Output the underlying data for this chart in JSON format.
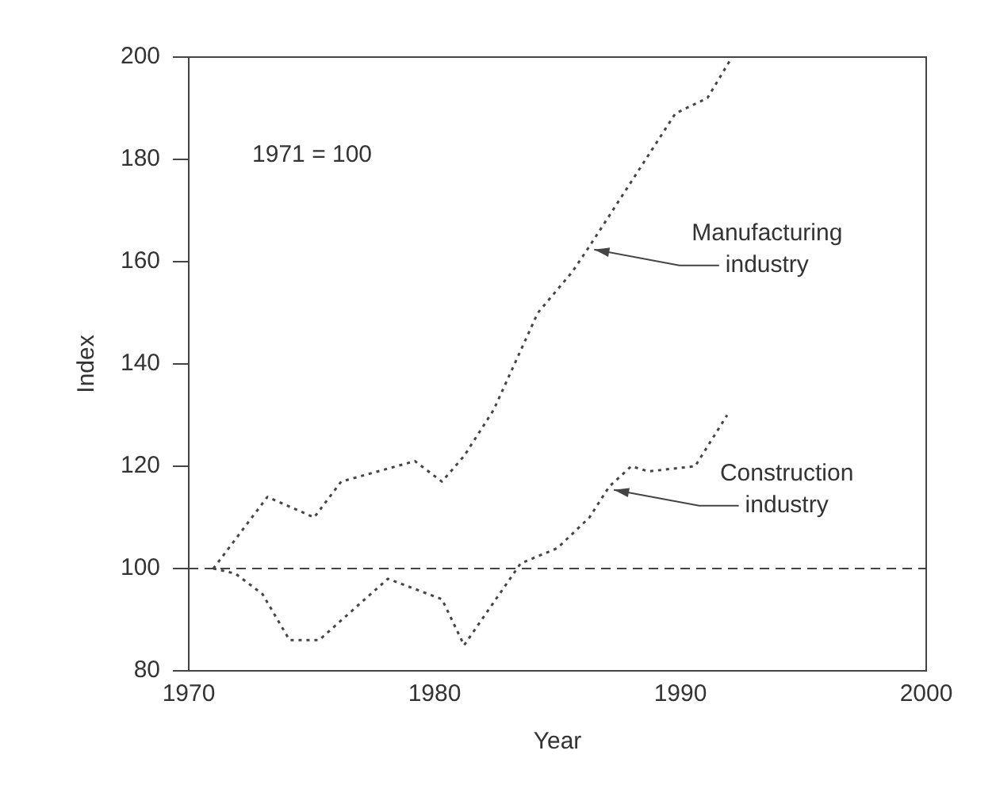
{
  "chart_data": {
    "type": "line",
    "xlabel": "Year",
    "ylabel": "Index",
    "xlim": [
      1970,
      2000
    ],
    "xticks": [
      1970,
      1980,
      1990,
      2000
    ],
    "ylim": [
      80,
      200
    ],
    "yticks": [
      80,
      100,
      120,
      140,
      160,
      180,
      200
    ],
    "grid": false,
    "legend": false,
    "marker": "none",
    "line_style": "dotted",
    "series": [
      {
        "color": "#444444",
        "x": [
          1971,
          1973.2,
          1975.1,
          1976.2,
          1979.2,
          1980.3,
          1981.2,
          1982.4,
          1984.2,
          1985.6,
          1986.3,
          1989.8,
          1991.1,
          1992.1
        ],
        "values": [
          100,
          114,
          110,
          117,
          121,
          117,
          122,
          131,
          150,
          158,
          163,
          189,
          192,
          200
        ]
      },
      {
        "color": "#444444",
        "x": [
          1971,
          1971.9,
          1973,
          1974.1,
          1975.3,
          1978.1,
          1980.3,
          1981.2,
          1983.5,
          1985,
          1986.3,
          1987.1,
          1988,
          1988.7,
          1990.6,
          1991.9
        ],
        "values": [
          100,
          99,
          95,
          86,
          86,
          98,
          94,
          85,
          101,
          104,
          110,
          116,
          120,
          119,
          120,
          130
        ]
      }
    ],
    "ref_lines": [
      {
        "axis": "y",
        "value": 100,
        "line_style": "dashed",
        "color": "#444444"
      }
    ],
    "annotations": [
      "1971 = 100",
      {
        "text": "Manufacturing industry",
        "x": 1986.3,
        "y": 163
      },
      {
        "text": "Construction industry",
        "x": 1987.1,
        "y": 116
      }
    ]
  }
}
